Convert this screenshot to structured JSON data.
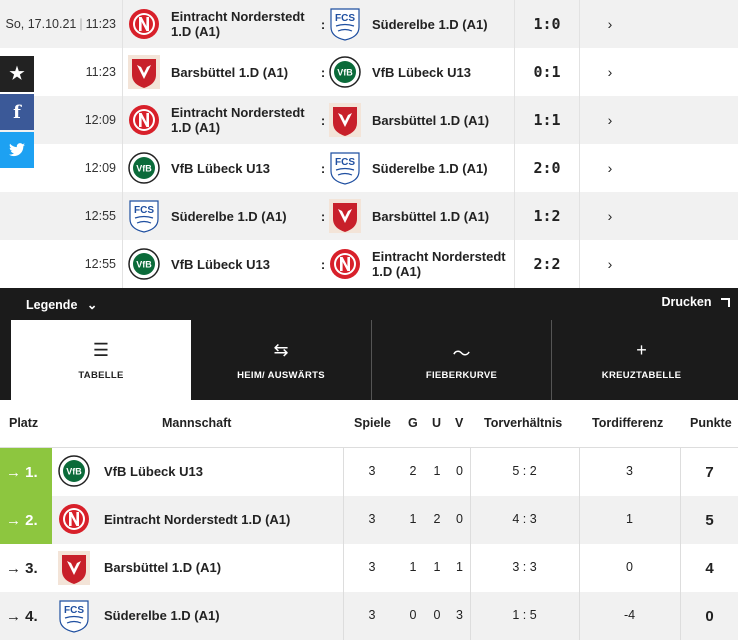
{
  "date_label": "So, 17.10.21",
  "matches": [
    {
      "time": "11:23",
      "home": "Eintracht Norderstedt 1.D (A1)",
      "home_logo": "norderstedt-logo",
      "away": "Süderelbe 1.D (A1)",
      "away_logo": "suederelbe-logo",
      "score": "1:0",
      "chevron": "›"
    },
    {
      "time": "11:23",
      "home": "Barsbüttel 1.D (A1)",
      "home_logo": "barsbuettel-logo",
      "away": "VfB Lübeck U13",
      "away_logo": "vfb-luebeck-logo",
      "score": "0:1",
      "chevron": "›"
    },
    {
      "time": "12:09",
      "home": "Eintracht Norderstedt 1.D (A1)",
      "home_logo": "norderstedt-logo",
      "away": "Barsbüttel 1.D (A1)",
      "away_logo": "barsbuettel-logo",
      "score": "1:1",
      "chevron": "›"
    },
    {
      "time": "12:09",
      "home": "VfB Lübeck U13",
      "home_logo": "vfb-luebeck-logo",
      "away": "Süderelbe 1.D (A1)",
      "away_logo": "suederelbe-logo",
      "score": "2:0",
      "chevron": "›"
    },
    {
      "time": "12:55",
      "home": "Süderelbe 1.D (A1)",
      "home_logo": "suederelbe-logo",
      "away": "Barsbüttel 1.D (A1)",
      "away_logo": "barsbuettel-logo",
      "score": "1:2",
      "chevron": "›"
    },
    {
      "time": "12:55",
      "home": "VfB Lübeck U13",
      "home_logo": "vfb-luebeck-logo",
      "away": "Eintracht Norderstedt 1.D (A1)",
      "away_logo": "norderstedt-logo",
      "score": "2:2",
      "chevron": "›"
    }
  ],
  "share": {
    "star": "★",
    "facebook": "f",
    "twitter": "🐦"
  },
  "nav": {
    "legende": "Legende",
    "legende_chevron": "⌄",
    "drucken": "Drucken",
    "tabs": [
      {
        "label": "TABELLE",
        "icon": "list-icon",
        "glyph": "☰",
        "active": true
      },
      {
        "label": "HEIM/ AUSWÄRTS",
        "icon": "swap-icon",
        "glyph": "⇆",
        "active": false
      },
      {
        "label": "FIEBERKURVE",
        "icon": "trend-icon",
        "glyph": "〜",
        "active": false
      },
      {
        "label": "KREUZTABELLE",
        "icon": "plus-icon",
        "glyph": "+",
        "active": false
      }
    ]
  },
  "table": {
    "headers": {
      "platz": "Platz",
      "mannschaft": "Mannschaft",
      "spiele": "Spiele",
      "g": "G",
      "u": "U",
      "v": "V",
      "torverhaeltnis": "Torverhältnis",
      "tordifferenz": "Tordifferenz",
      "punkte": "Punkte"
    },
    "rows": [
      {
        "rank": "→ 1.",
        "team": "VfB Lübeck U13",
        "logo": "vfb-luebeck-logo",
        "spiele": "3",
        "g": "2",
        "u": "1",
        "v": "0",
        "tore": "5 : 2",
        "diff": "3",
        "punkte": "7",
        "highlight": true
      },
      {
        "rank": "→ 2.",
        "team": "Eintracht Norderstedt 1.D (A1)",
        "logo": "norderstedt-logo",
        "spiele": "3",
        "g": "1",
        "u": "2",
        "v": "0",
        "tore": "4 : 3",
        "diff": "1",
        "punkte": "5",
        "highlight": true
      },
      {
        "rank": "→ 3.",
        "team": "Barsbüttel 1.D (A1)",
        "logo": "barsbuettel-logo",
        "spiele": "3",
        "g": "1",
        "u": "1",
        "v": "1",
        "tore": "3 : 3",
        "diff": "0",
        "punkte": "4",
        "highlight": false
      },
      {
        "rank": "→ 4.",
        "team": "Süderelbe 1.D (A1)",
        "logo": "suederelbe-logo",
        "spiele": "3",
        "g": "0",
        "u": "0",
        "v": "3",
        "tore": "1 : 5",
        "diff": "-4",
        "punkte": "0",
        "highlight": false
      }
    ]
  },
  "colors": {
    "accent_green": "#8dc63f",
    "dark": "#1b1b1b",
    "norderstedt_red": "#d8202a",
    "vfb_green": "#0b6b3a",
    "suederelbe_blue": "#1f4fa0",
    "barsbuettel_red": "#c8202a"
  }
}
